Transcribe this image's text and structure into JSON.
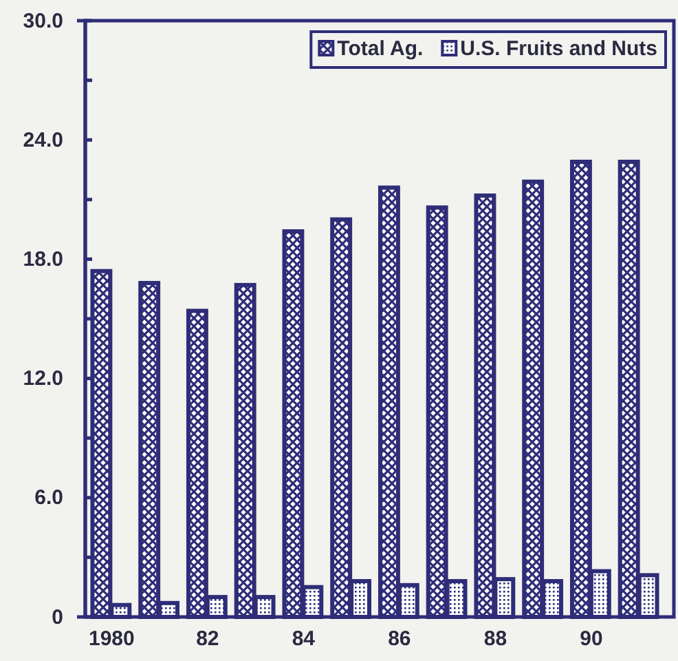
{
  "chart_data": {
    "type": "bar",
    "categories": [
      "1980",
      null,
      "82",
      null,
      "84",
      null,
      "86",
      null,
      "88",
      null,
      "90",
      null
    ],
    "series": [
      {
        "name": "Total Ag.",
        "color": "#2e2d78",
        "values": [
          17.4,
          16.8,
          15.4,
          16.7,
          19.4,
          20.0,
          21.6,
          20.6,
          21.2,
          21.9,
          22.9,
          22.9
        ]
      },
      {
        "name": "U.S. Fruits and Nuts",
        "color": "#2e2d78",
        "values": [
          0.6,
          0.7,
          1.0,
          1.0,
          1.5,
          1.8,
          1.6,
          1.8,
          1.9,
          1.8,
          2.3,
          2.1
        ]
      }
    ],
    "ylim": [
      0,
      30
    ],
    "yticks": [
      0,
      {
        "value": 3,
        "label": null
      },
      {
        "value": 6,
        "label": "6.0"
      },
      {
        "value": 9,
        "label": null
      },
      {
        "value": 12,
        "label": "12.0"
      },
      {
        "value": 15,
        "label": null
      },
      {
        "value": 18,
        "label": "18.0"
      },
      {
        "value": 21,
        "label": null
      },
      {
        "value": 24,
        "label": "24.0"
      },
      {
        "value": 27,
        "label": null
      },
      {
        "value": 30,
        "label": "30.0"
      }
    ],
    "grid": false,
    "legend": "top right"
  }
}
